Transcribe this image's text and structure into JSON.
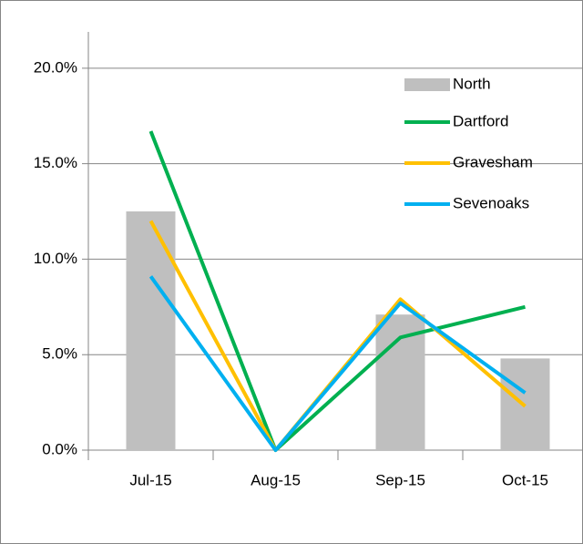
{
  "chart_data": {
    "type": "bar-line",
    "categories": [
      "Jul-15",
      "Aug-15",
      "Sep-15",
      "Oct-15"
    ],
    "series": [
      {
        "name": "North",
        "type": "bar",
        "color": "#bfbfbf",
        "values": [
          12.5,
          0,
          7.1,
          4.8
        ]
      },
      {
        "name": "Dartford",
        "type": "line",
        "color": "#00b050",
        "values": [
          16.7,
          0,
          5.9,
          7.5
        ]
      },
      {
        "name": "Gravesham",
        "type": "line",
        "color": "#ffc000",
        "values": [
          12.0,
          0,
          7.9,
          2.3
        ]
      },
      {
        "name": "Sevenoaks",
        "type": "line",
        "color": "#00b0f0",
        "values": [
          9.1,
          0,
          7.7,
          3.0
        ]
      }
    ],
    "ylim": [
      0,
      21.9
    ],
    "yticks": [
      {
        "value": 0,
        "label": "0.0%"
      },
      {
        "value": 5,
        "label": "5.0%"
      },
      {
        "value": 10,
        "label": "10.0%"
      },
      {
        "value": 15,
        "label": "15.0%"
      },
      {
        "value": 20,
        "label": "20.0%"
      }
    ],
    "legend": "upper right"
  }
}
